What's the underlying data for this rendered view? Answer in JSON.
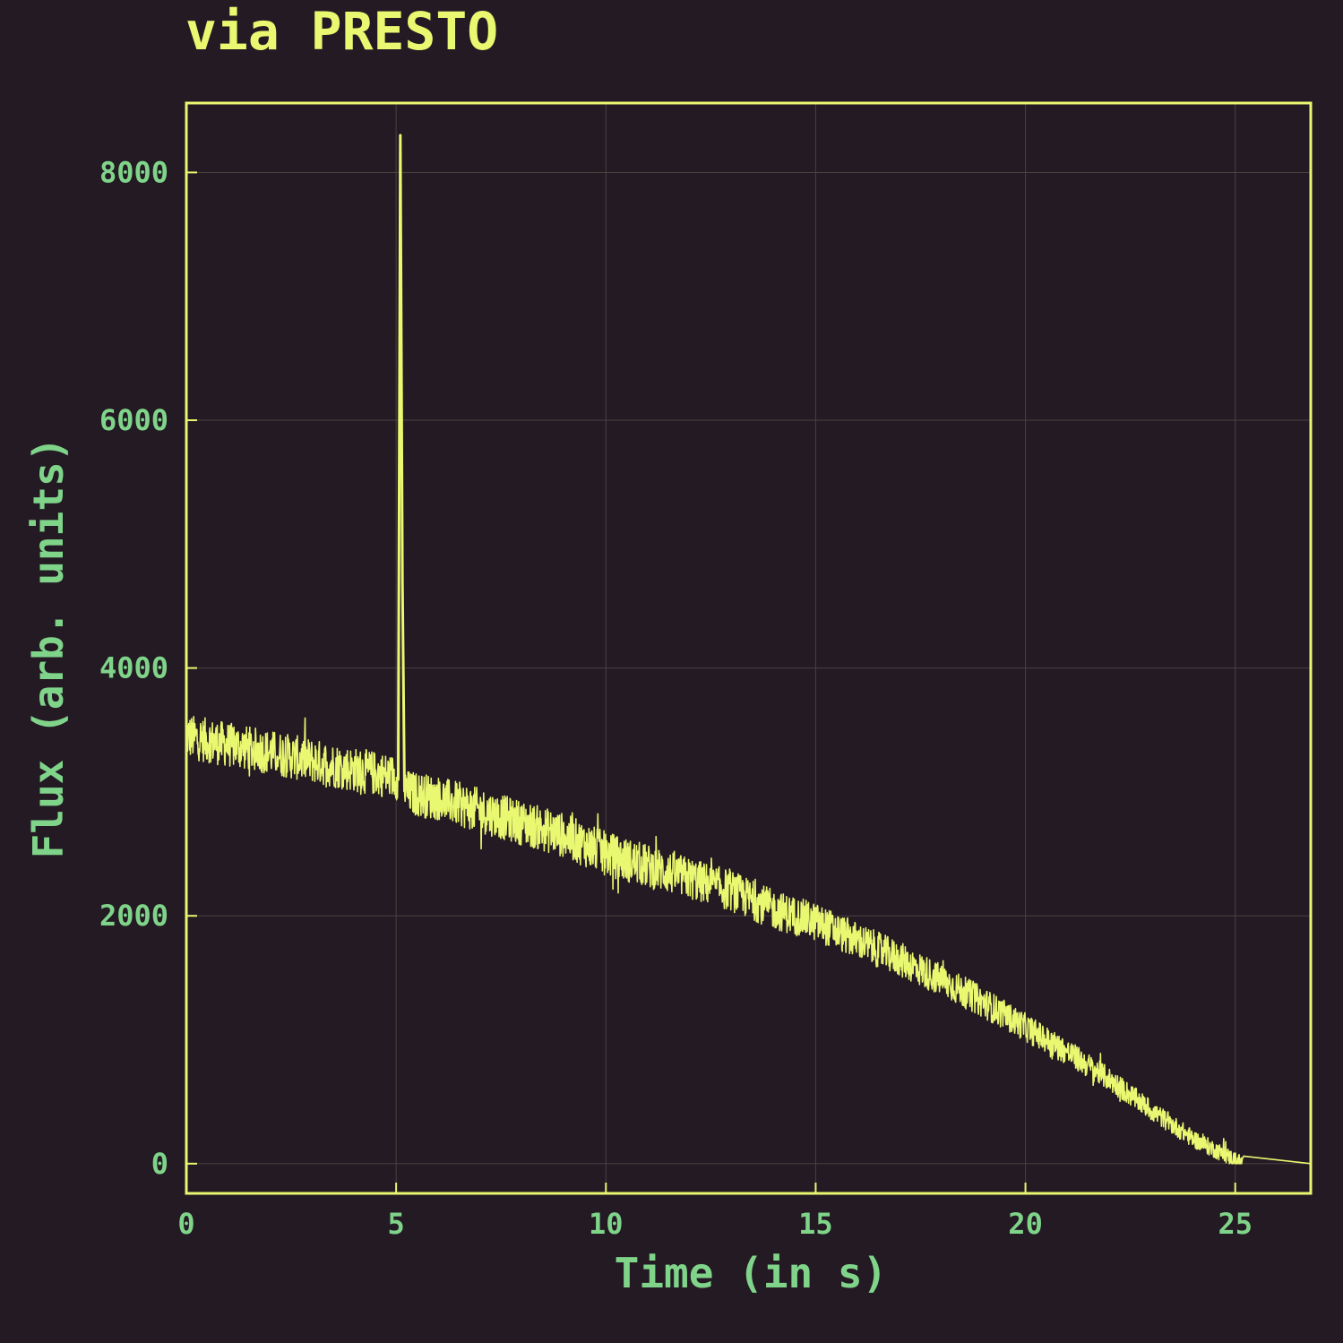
{
  "chart_data": {
    "type": "line",
    "title": "via PRESTO",
    "xlabel": "Time (in s)",
    "ylabel": "Flux (arb. units)",
    "xlim": [
      0,
      26.8
    ],
    "ylim": [
      -240,
      8560
    ],
    "xticks": [
      0,
      5,
      10,
      15,
      20,
      25
    ],
    "yticks": [
      0,
      2000,
      4000,
      6000,
      8000
    ],
    "x_tick_labels": [
      "0",
      "5",
      "10",
      "15",
      "20",
      "25"
    ],
    "y_tick_labels": [
      "0",
      "2000",
      "4000",
      "6000",
      "8000"
    ],
    "grid": true,
    "legend": "none",
    "series": [
      {
        "x": [
          0,
          1,
          2,
          3,
          4,
          5,
          5.05,
          5.1,
          5.15,
          5.2,
          6,
          7,
          8,
          9,
          10,
          11,
          12,
          13,
          14,
          15,
          16,
          17,
          18,
          19,
          20,
          21,
          22,
          23,
          24,
          25,
          25.2,
          26.8
        ],
        "y": [
          3450,
          3380,
          3320,
          3250,
          3180,
          3120,
          3100,
          8300,
          4700,
          3000,
          2950,
          2850,
          2750,
          2650,
          2500,
          2400,
          2300,
          2200,
          2050,
          1950,
          1800,
          1650,
          1480,
          1300,
          1100,
          900,
          680,
          430,
          200,
          30,
          0,
          0
        ],
        "noise_amplitude": 180
      }
    ],
    "colors": {
      "background": "#241a24",
      "line": "#e8f870",
      "frame": "#e8f870",
      "grid": "#4a4040",
      "text": "#7fd48a",
      "title": "#e8f870"
    }
  }
}
